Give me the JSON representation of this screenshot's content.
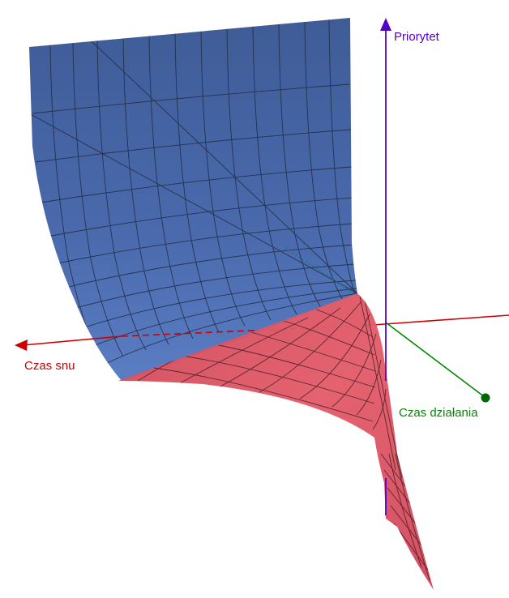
{
  "axes": {
    "x": {
      "label": "Czas snu",
      "color": "#cc0000"
    },
    "y": {
      "label": "Czas działania",
      "color": "#008800"
    },
    "z": {
      "label": "Priorytet",
      "color": "#5500cc"
    }
  },
  "surface": {
    "back_color": "#4a6aa8",
    "front_color": "#e05866",
    "mesh_color": "#222222"
  }
}
